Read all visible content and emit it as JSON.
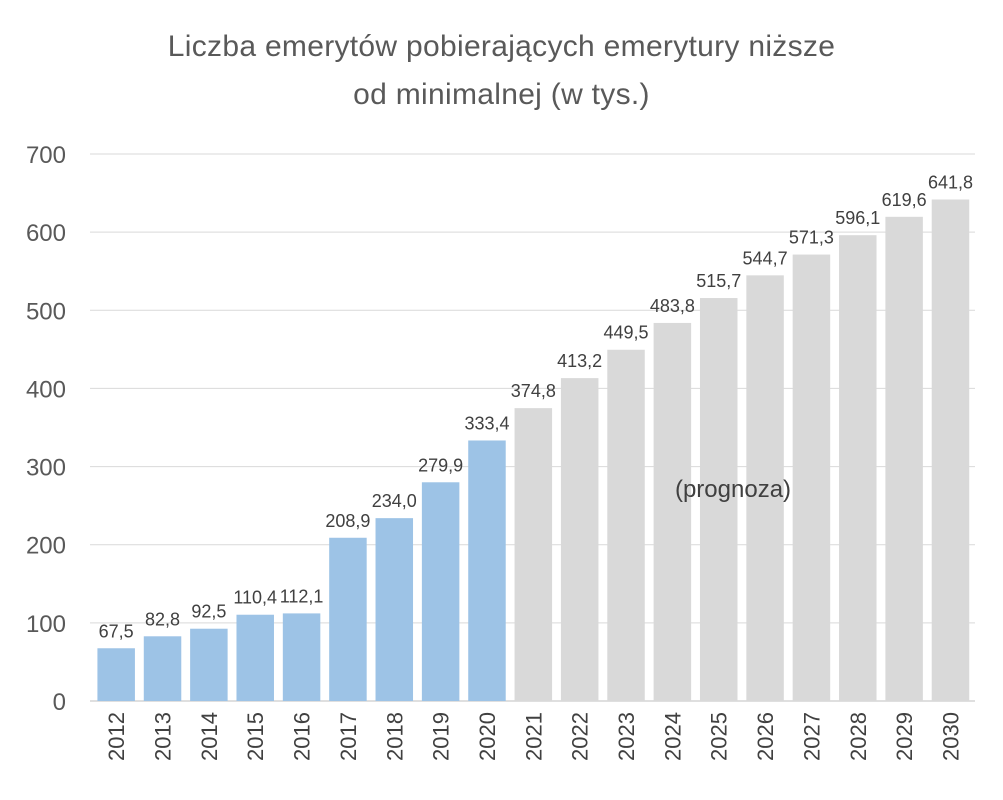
{
  "chart_data": {
    "type": "bar",
    "title_lines": [
      "Liczba emerytów pobierających emerytury niższe",
      "od minimalnej (w tys.)"
    ],
    "xlabel": "",
    "ylabel": "",
    "categories": [
      "2012",
      "2013",
      "2014",
      "2015",
      "2016",
      "2017",
      "2018",
      "2019",
      "2020",
      "2021",
      "2022",
      "2023",
      "2024",
      "2025",
      "2026",
      "2027",
      "2028",
      "2029",
      "2030"
    ],
    "values": [
      67.5,
      82.8,
      92.5,
      110.4,
      112.1,
      208.9,
      234.0,
      279.9,
      333.4,
      374.8,
      413.2,
      449.5,
      483.8,
      515.7,
      544.7,
      571.3,
      596.1,
      619.6,
      641.8
    ],
    "value_labels": [
      "67,5",
      "82,8",
      "92,5",
      "110,4",
      "112,1",
      "208,9",
      "234,0",
      "279,9",
      "333,4",
      "374,8",
      "413,2",
      "449,5",
      "483,8",
      "515,7",
      "544,7",
      "571,3",
      "596,1",
      "619,6",
      "641,8"
    ],
    "forecast_from_index": 9,
    "ylim": [
      0,
      700
    ],
    "yticks": [
      0,
      100,
      200,
      300,
      400,
      500,
      600,
      700
    ],
    "grid": true,
    "legend": "none",
    "annotation": "(prognoza)",
    "colors": {
      "actual": "#9dc3e6",
      "forecast": "#d9d9d9",
      "grid": "#d9d9d9",
      "text": "#595959"
    }
  }
}
